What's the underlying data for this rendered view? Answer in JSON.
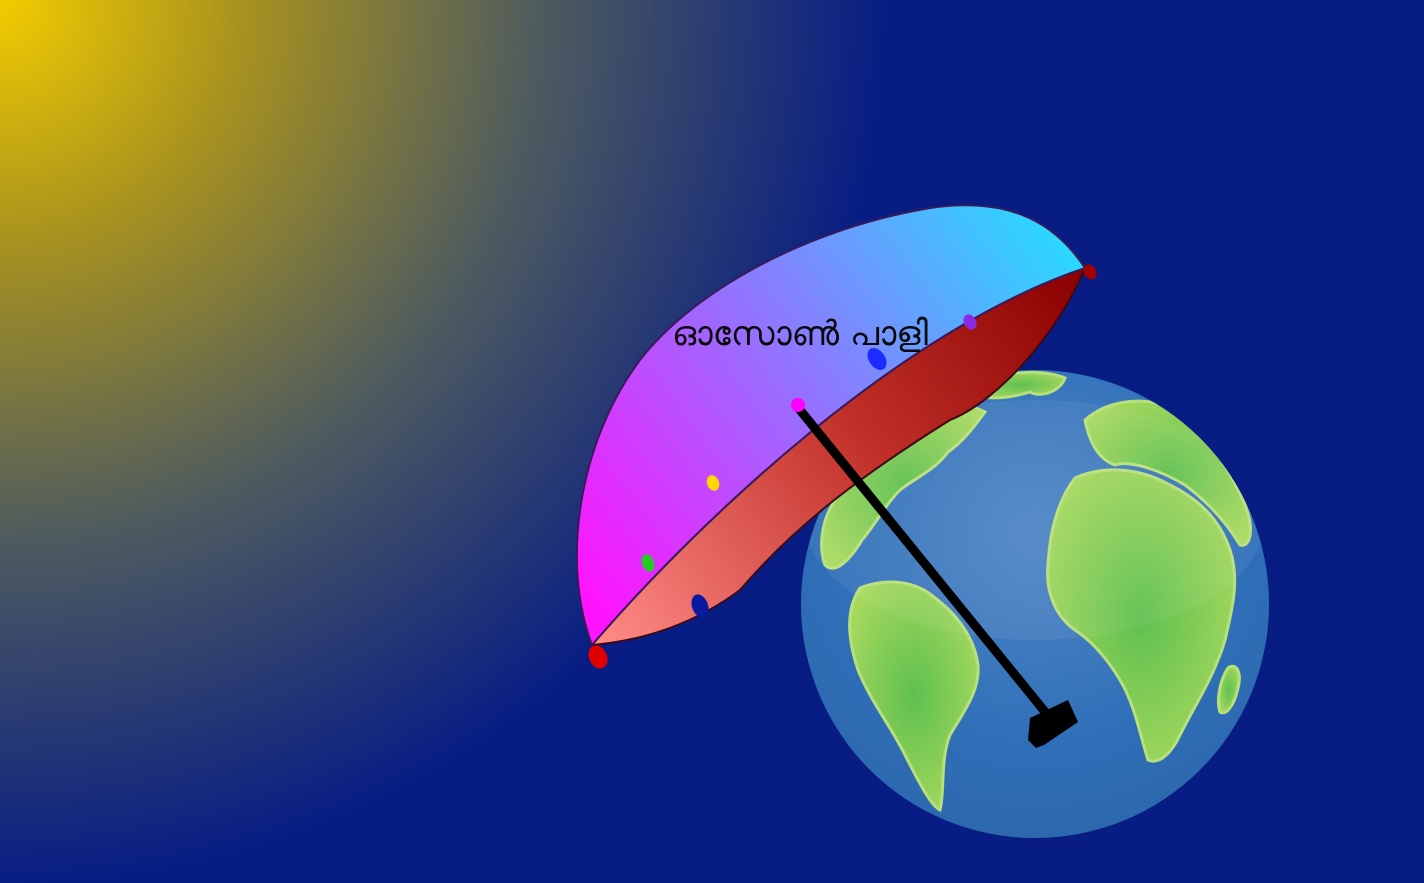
{
  "label": "ഓസോൺ പാളി",
  "colors": {
    "space": "#071d84",
    "sun": "#f2cc00",
    "ocean": "#2f6fb8",
    "land": "#7cc85a",
    "canopy_top_left": "#ff14ff",
    "canopy_top_right": "#22e0ff",
    "canopy_under_left": "#ff8a86",
    "canopy_under_right": "#8a0000",
    "handle": "#000000"
  },
  "icons": {
    "earth": "earth-globe-icon",
    "umbrella": "umbrella-icon",
    "sun": "sunlight-glow"
  },
  "canopy_tips": [
    {
      "name": "tip-red-left",
      "color": "#e00000"
    },
    {
      "name": "tip-navy",
      "color": "#0a1aa0"
    },
    {
      "name": "tip-green",
      "color": "#22cc22"
    },
    {
      "name": "tip-yellow",
      "color": "#ffd800"
    },
    {
      "name": "tip-magenta",
      "color": "#ff00ff"
    },
    {
      "name": "tip-blue",
      "color": "#1a2cff"
    },
    {
      "name": "tip-purple",
      "color": "#8a2be2"
    },
    {
      "name": "tip-darkred-right",
      "color": "#a00000"
    }
  ]
}
